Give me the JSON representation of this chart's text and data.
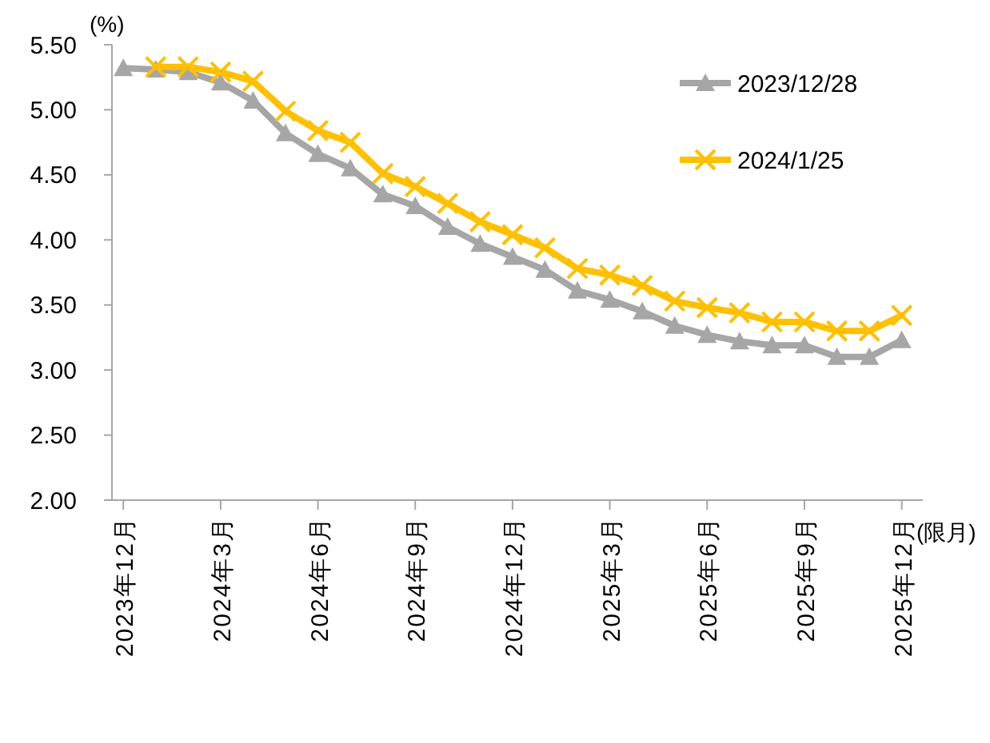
{
  "chart_data": {
    "type": "line",
    "xlabel": "(限月)",
    "ylabel": "(%)",
    "categories": [
      "2023年12月",
      null,
      null,
      "2024年3月",
      null,
      null,
      "2024年6月",
      null,
      null,
      "2024年9月",
      null,
      null,
      "2024年12月",
      null,
      null,
      "2025年3月",
      null,
      null,
      "2025年6月",
      null,
      null,
      "2025年9月",
      null,
      null,
      "2025年12月"
    ],
    "series": [
      {
        "name": "2023/12/28",
        "color": "#a6a6a6",
        "marker": "triangle",
        "values": [
          5.32,
          5.31,
          5.29,
          5.21,
          5.07,
          4.82,
          4.66,
          4.55,
          4.35,
          4.26,
          4.1,
          3.97,
          3.87,
          3.77,
          3.61,
          3.54,
          3.45,
          3.34,
          3.27,
          3.22,
          3.19,
          3.19,
          3.1,
          3.1,
          3.23
        ]
      },
      {
        "name": "2024/1/25",
        "color": "#ffc000",
        "marker": "cross",
        "values": [
          null,
          5.33,
          5.33,
          5.29,
          5.22,
          4.99,
          4.84,
          4.75,
          4.51,
          4.41,
          4.28,
          4.14,
          4.04,
          3.94,
          3.78,
          3.73,
          3.65,
          3.53,
          3.48,
          3.44,
          3.37,
          3.37,
          3.3,
          3.3,
          3.42
        ]
      }
    ],
    "ylim": [
      2,
      5.5
    ],
    "yticks": [
      {
        "value": 2,
        "label": "2.00"
      },
      {
        "value": 2.5,
        "label": "2.50"
      },
      {
        "value": 3,
        "label": "3.00"
      },
      {
        "value": 3.5,
        "label": "3.50"
      },
      {
        "value": 4,
        "label": "4.00"
      },
      {
        "value": 4.5,
        "label": "4.50"
      },
      {
        "value": 5,
        "label": "5.00"
      },
      {
        "value": 5.5,
        "label": "5.50"
      }
    ],
    "grid": false,
    "legend": "top right",
    "line_style": "solid"
  }
}
